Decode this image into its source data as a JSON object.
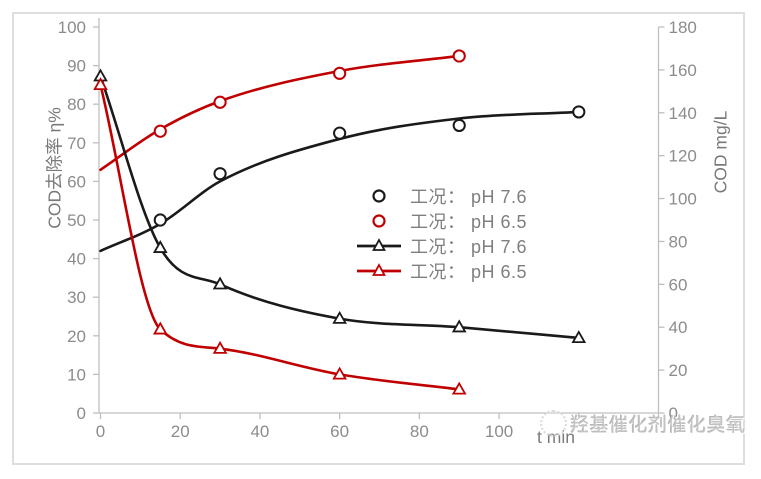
{
  "palette": {
    "series_black": "#1a1a1a",
    "series_red": "#c00000",
    "axis_line": "#bfbfbf",
    "tick_text": "#8c8c8c",
    "title_text": "#7a7a7a",
    "legend_text": "#7f7f7f",
    "watermark_text": "#c3c3c3",
    "frame_border": "#dedede"
  },
  "watermark": {
    "text": "羟基催化剂催化臭氧",
    "logo": "circle-face-logo"
  },
  "chart_data": {
    "type": "line",
    "title": "",
    "xlabel": "t min",
    "ylabel": "COD去除率 η%",
    "ylabel_right": "COD mg/L",
    "grid": false,
    "legend_position": "center-right",
    "axes": {
      "x": {
        "title": "t min",
        "min": 0,
        "max": 140,
        "ticks": [
          {
            "v": 0,
            "label": "0"
          },
          {
            "v": 20,
            "label": "20"
          },
          {
            "v": 40,
            "label": "40"
          },
          {
            "v": 60,
            "label": "60"
          },
          {
            "v": 80,
            "label": "80"
          },
          {
            "v": 100,
            "label": "100"
          },
          {
            "v": 120,
            "label": ""
          },
          {
            "v": 140,
            "label": ""
          }
        ]
      },
      "y_left": {
        "title": "COD去除率 η%",
        "min": 0,
        "max": 100,
        "ticks": [
          0,
          10,
          20,
          30,
          40,
          50,
          60,
          70,
          80,
          90,
          100
        ]
      },
      "y_right": {
        "title": "COD mg/L",
        "min": 0,
        "max": 180,
        "ticks": [
          0,
          20,
          40,
          60,
          80,
          100,
          120,
          140,
          160,
          180
        ]
      }
    },
    "series": [
      {
        "name": "工况： pH 7.6",
        "axis": "left",
        "marker": "circle",
        "line": "trend",
        "color": "#1a1a1a",
        "x": [
          15,
          30,
          60,
          90,
          120
        ],
        "y": [
          50,
          62,
          72.5,
          74.5,
          78
        ],
        "trend": {
          "x": [
            0,
            15,
            30,
            60,
            90,
            120
          ],
          "y": [
            42,
            49,
            60,
            71,
            76.3,
            78
          ]
        }
      },
      {
        "name": "工况： pH 6.5",
        "axis": "left",
        "marker": "circle",
        "line": "trend",
        "color": "#c00000",
        "x": [
          15,
          30,
          60,
          90
        ],
        "y": [
          73,
          80.5,
          88,
          92.5
        ],
        "trend": {
          "x": [
            0,
            15,
            30,
            60,
            90
          ],
          "y": [
            63,
            73.5,
            80.8,
            88.6,
            92.5
          ]
        }
      },
      {
        "name": "工况： pH 7.6",
        "axis": "right",
        "marker": "triangle",
        "line": "through",
        "color": "#1a1a1a",
        "x": [
          0,
          15,
          30,
          60,
          90,
          120
        ],
        "y": [
          157,
          77,
          60,
          44,
          40,
          35
        ]
      },
      {
        "name": "工况： pH 6.5",
        "axis": "right",
        "marker": "triangle",
        "line": "through",
        "color": "#c00000",
        "x": [
          0,
          15,
          30,
          60,
          90
        ],
        "y": [
          153,
          39,
          30,
          18,
          11
        ]
      }
    ]
  }
}
